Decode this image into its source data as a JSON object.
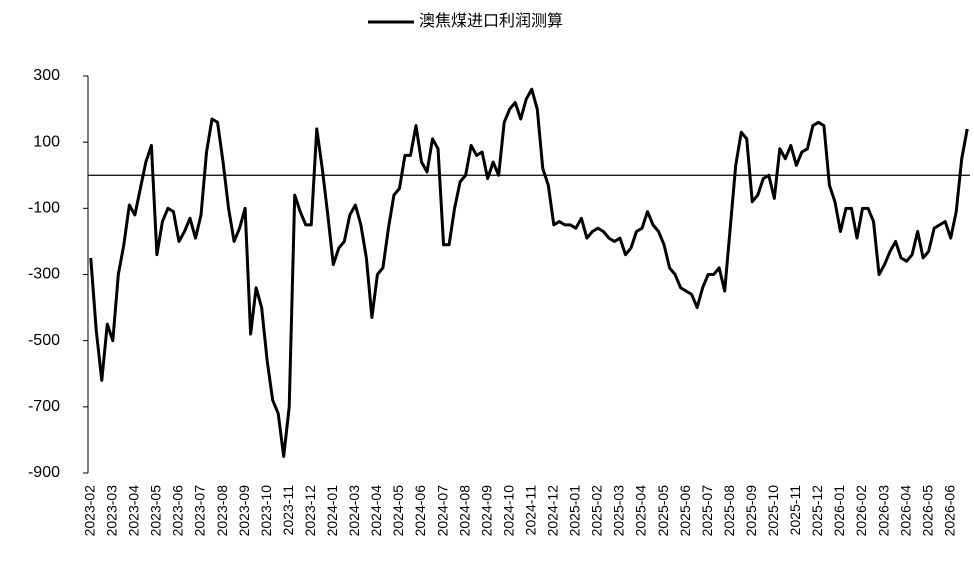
{
  "chart_data": {
    "type": "line",
    "categories": [
      "2023-02",
      null,
      null,
      null,
      "2023-03",
      null,
      null,
      null,
      "2023-04",
      null,
      null,
      null,
      "2023-05",
      null,
      null,
      null,
      "2023-06",
      null,
      null,
      null,
      "2023-07",
      null,
      null,
      null,
      "2023-08",
      null,
      null,
      null,
      "2023-09",
      null,
      null,
      null,
      "2023-10",
      null,
      null,
      null,
      "2023-11",
      null,
      null,
      null,
      "2023-12",
      null,
      null,
      null,
      "2024-01",
      null,
      null,
      null,
      "2024-03",
      null,
      null,
      null,
      "2024-04",
      null,
      null,
      null,
      "2024-05",
      null,
      null,
      null,
      "2024-06",
      null,
      null,
      null,
      "2024-07",
      null,
      null,
      null,
      "2024-08",
      null,
      null,
      null,
      "2024-09",
      null,
      null,
      null,
      "2024-10",
      null,
      null,
      null,
      "2024-11",
      null,
      null,
      null,
      "2024-12",
      null,
      null,
      null,
      "2025-01",
      null,
      null,
      null,
      "2025-02",
      null,
      null,
      null,
      "2025-03",
      null,
      null,
      null,
      "2025-04",
      null,
      null,
      null,
      "2025-05",
      null,
      null,
      null,
      "2025-06",
      null,
      null,
      null,
      "2025-07",
      null,
      null,
      null,
      "2025-08",
      null,
      null,
      null,
      "2025-09",
      null,
      null,
      null,
      "2025-10",
      null,
      null,
      null,
      "2025-11",
      null,
      null,
      null,
      "2025-12",
      null,
      null,
      null,
      "2026-01",
      null,
      null,
      null,
      "2026-02",
      null,
      null,
      null,
      "2026-03",
      null,
      null,
      null,
      "2026-04",
      null,
      null,
      null,
      "2026-05",
      null,
      null,
      null,
      "2026-06",
      null,
      null,
      null
    ],
    "series": [
      {
        "name": "澳焦煤进口利润测算",
        "color": "#000000",
        "values": [
          -250,
          -470,
          -620,
          -450,
          -500,
          -300,
          -210,
          -90,
          -120,
          -40,
          40,
          90,
          -240,
          -140,
          -100,
          -110,
          -200,
          -170,
          -130,
          -190,
          -120,
          70,
          170,
          160,
          40,
          -100,
          -200,
          -160,
          -100,
          -480,
          -340,
          -400,
          -560,
          -680,
          -720,
          -850,
          -700,
          -60,
          -110,
          -150,
          -150,
          140,
          20,
          -120,
          -270,
          -220,
          -200,
          -120,
          -90,
          -150,
          -250,
          -430,
          -300,
          -280,
          -160,
          -60,
          -40,
          60,
          60,
          150,
          40,
          10,
          110,
          80,
          -210,
          -210,
          -100,
          -20,
          0,
          90,
          60,
          70,
          -10,
          40,
          0,
          160,
          200,
          220,
          170,
          230,
          260,
          200,
          20,
          -30,
          -150,
          -140,
          -150,
          -150,
          -160,
          -130,
          -190,
          -170,
          -160,
          -170,
          -190,
          -200,
          -190,
          -240,
          -220,
          -170,
          -160,
          -110,
          -150,
          -170,
          -210,
          -280,
          -300,
          -340,
          -350,
          -360,
          -400,
          -340,
          -300,
          -300,
          -280,
          -350,
          -160,
          30,
          130,
          110,
          -80,
          -60,
          -10,
          0,
          -70,
          80,
          50,
          90,
          30,
          70,
          80,
          150,
          160,
          150,
          -30,
          -80,
          -170,
          -100,
          -100,
          -190,
          -100,
          -100,
          -140,
          -300,
          -270,
          -230,
          -200,
          -250,
          -260,
          -240,
          -170,
          -250,
          -230,
          -160,
          -150,
          -140,
          -190,
          -110,
          50,
          140
        ]
      }
    ],
    "ylim": [
      -900,
      300
    ],
    "yticks": [
      300,
      100,
      -100,
      -300,
      -500,
      -700,
      -900
    ],
    "legend": "top"
  }
}
